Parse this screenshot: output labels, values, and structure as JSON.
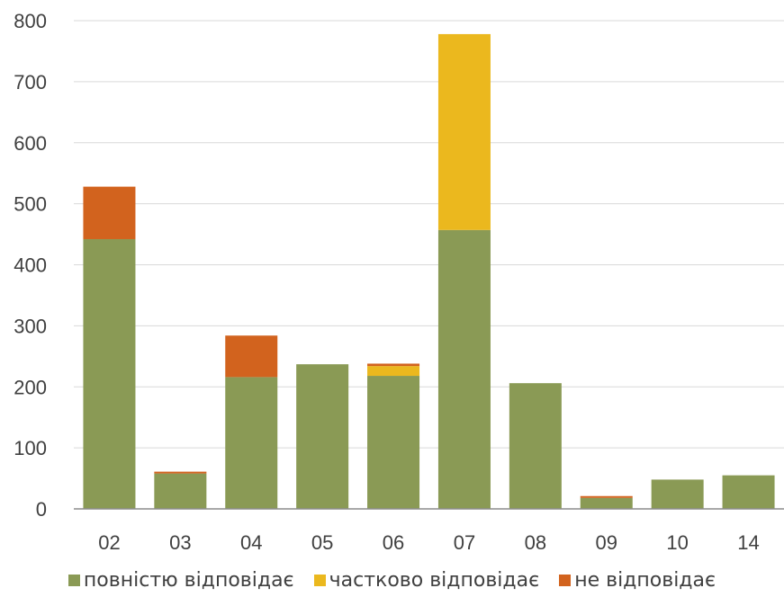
{
  "chart_data": {
    "type": "bar",
    "stacked": true,
    "categories": [
      "02",
      "03",
      "04",
      "05",
      "06",
      "07",
      "08",
      "09",
      "10",
      "14"
    ],
    "series": [
      {
        "name": "повністю відповідає",
        "color": "#8a9a55",
        "values": [
          442,
          58,
          216,
          237,
          218,
          457,
          206,
          18,
          48,
          55
        ]
      },
      {
        "name": "частково відповідає",
        "color": "#ebb81e",
        "values": [
          0,
          0,
          0,
          0,
          16,
          321,
          0,
          0,
          0,
          0
        ]
      },
      {
        "name": "не відповідає",
        "color": "#d2631e",
        "values": [
          86,
          3,
          68,
          0,
          4,
          0,
          0,
          3,
          0,
          0
        ]
      }
    ],
    "ylim": [
      0,
      800
    ],
    "yticks": [
      "0",
      "100",
      "200",
      "300",
      "400",
      "500",
      "600",
      "700",
      "800"
    ],
    "grid": true,
    "legend_position": "bottom"
  }
}
